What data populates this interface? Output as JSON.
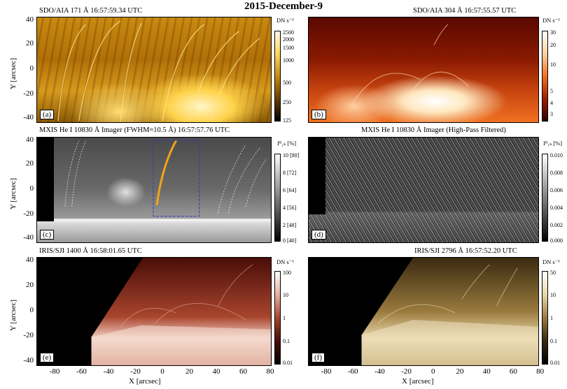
{
  "title": "2015-December-9",
  "y_axis_label": "Y [arcsec]",
  "x_axis_label": "X [arcsec]",
  "y_ticks": [
    "40",
    "20",
    "0",
    "-20",
    "-40"
  ],
  "x_ticks": [
    "-80",
    "-60",
    "-40",
    "-20",
    "0",
    "20",
    "40",
    "60",
    "80"
  ],
  "panels": {
    "a": {
      "title": "SDO/AIA 171 Å 16:57:59.34 UTC",
      "label": "(a)",
      "colorbar": {
        "title": "DN s⁻¹",
        "ticks": [
          "2500",
          "2000",
          "1500",
          "1000",
          "500",
          "250",
          "125"
        ]
      }
    },
    "b": {
      "title": "SDO/AIA 304 Å 16:57:55.57 UTC",
      "label": "(b)",
      "colorbar": {
        "title": "DN s⁻¹",
        "ticks": [
          "30",
          "20",
          "10",
          "5",
          "4",
          "3"
        ]
      }
    },
    "c": {
      "title": "MXIS He I 10830 Å Imager (FWHM≈10.5 Å) 16:57:57.76 UTC",
      "label": "(c)",
      "colorbar": {
        "title": "Iᴮ₁ₖ [%]",
        "ticks": [
          "10 [80]",
          "8 [72]",
          "6 [64]",
          "4 [56]",
          "2 [48]",
          "0 [40]"
        ]
      }
    },
    "d": {
      "title": "MXIS He I 10830 Å Imager (High-Pass Filtered)",
      "label": "(d)",
      "colorbar": {
        "title": "Iᴮ₁ₖ [%]",
        "ticks": [
          "0.010",
          "0.008",
          "0.006",
          "0.004",
          "0.002",
          "0.000"
        ]
      }
    },
    "e": {
      "title": "IRIS/SJI 1400 Å 16:58:01.65 UTC",
      "label": "(e)",
      "colorbar": {
        "title": "DN s⁻¹",
        "ticks": [
          "100",
          "10",
          "1",
          "0.1",
          "0.01"
        ]
      }
    },
    "f": {
      "title": "IRIS/SJI 2796 Å 16:57:52.20 UTC",
      "label": "(f)",
      "colorbar": {
        "title": "DN s⁻¹",
        "ticks": [
          "50",
          "10",
          "1",
          "0.1",
          "0.01"
        ]
      }
    }
  }
}
